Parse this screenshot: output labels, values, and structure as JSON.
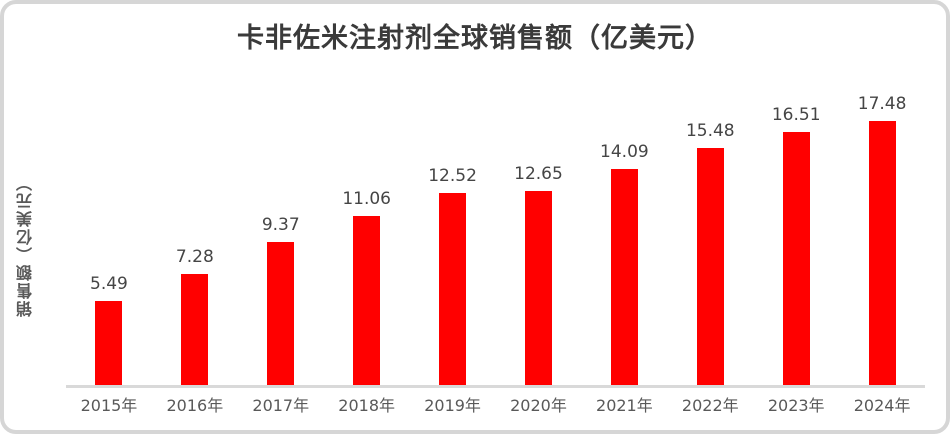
{
  "title": "卡非佐米注射剂全球销售额（亿美元）",
  "chart_data": {
    "type": "bar",
    "title": "卡非佐米注射剂全球销售额（亿美元）",
    "xlabel": "",
    "ylabel": "销售额（亿美元）",
    "categories": [
      "2015年",
      "2016年",
      "2017年",
      "2018年",
      "2019年",
      "2020年",
      "2021年",
      "2022年",
      "2023年",
      "2024年"
    ],
    "values": [
      5.49,
      7.28,
      9.37,
      11.06,
      12.52,
      12.65,
      14.09,
      15.48,
      16.51,
      17.48
    ],
    "value_labels": [
      "5.49",
      "7.28",
      "9.37",
      "11.06",
      "12.52",
      "12.65",
      "14.09",
      "15.48",
      "16.51",
      "17.48"
    ],
    "ylim": [
      0,
      19
    ],
    "grid": false,
    "legend": false,
    "data_labels": "outside-end",
    "bar_color": "#ff0000"
  },
  "colors": {
    "bar": "#ff0000",
    "axis_line": "#d9d9d9",
    "title_text": "#3a3a3a",
    "data_label_text": "#454545",
    "tick_label_text": "#595959",
    "frame_border": "#d6d6d6"
  }
}
